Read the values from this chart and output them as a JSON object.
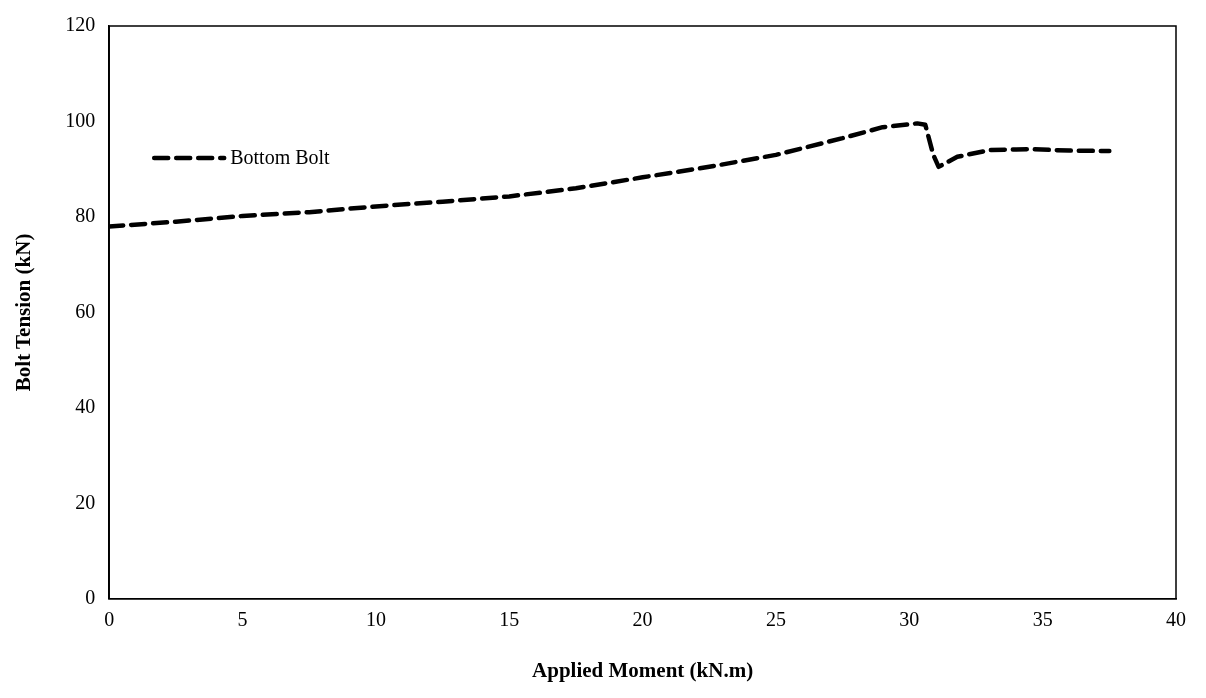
{
  "chart_data": {
    "type": "line",
    "xlabel": "Applied Moment (kN.m)",
    "ylabel": "Bolt Tension (kN)",
    "x": [
      0,
      2.5,
      5,
      7.5,
      10,
      12.5,
      15,
      17.5,
      20,
      22.5,
      25,
      27.5,
      29,
      30.3,
      30.6,
      30.9,
      31.1,
      31.8,
      33,
      34.5,
      36,
      37.5
    ],
    "series": [
      {
        "name": "Bottom Bolt",
        "color": "#000000",
        "values": [
          78,
          79,
          80.2,
          81,
          82.2,
          83.2,
          84.3,
          86,
          88.3,
          90.5,
          93,
          96.5,
          98.8,
          99.6,
          99.3,
          93,
          90.5,
          92.6,
          94,
          94.2,
          93.9,
          93.8
        ]
      }
    ],
    "xlim": [
      0,
      40
    ],
    "xticks": [
      0,
      5,
      10,
      15,
      20,
      25,
      30,
      35,
      40
    ],
    "ylim": [
      0,
      120
    ],
    "yticks": [
      0,
      20,
      40,
      60,
      80,
      100,
      120
    ],
    "grid": false,
    "legend": "top left",
    "marker": "none",
    "line_style": "dashed"
  }
}
